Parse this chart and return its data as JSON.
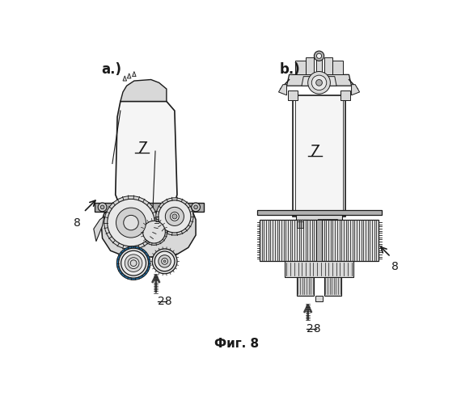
{
  "fig_label": "Фиг. 8",
  "label_a": "a.)",
  "label_b": "b.)",
  "label_7": "7",
  "label_8": "8",
  "label_28": "28",
  "bg_color": "#ffffff",
  "lc": "#1a1a1a",
  "fc_light": "#f5f5f5",
  "fc_mid": "#d8d8d8",
  "fc_dark": "#b0b0b0",
  "figsize": [
    5.7,
    5.0
  ],
  "dpi": 100
}
